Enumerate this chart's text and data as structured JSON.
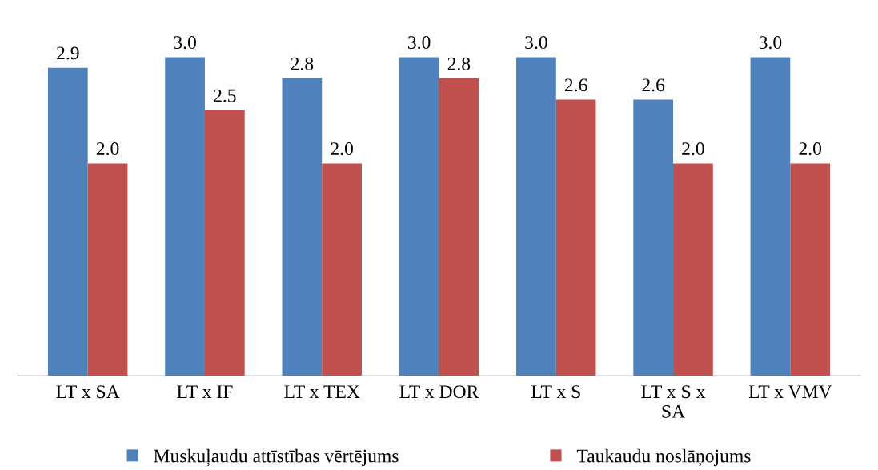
{
  "chart_data": {
    "type": "bar",
    "categories": [
      "LT x SA",
      "LT x IF",
      "LT x TEX",
      "LT x DOR",
      "LT x S",
      "LT x S x\nSA",
      "LT x VMV"
    ],
    "series": [
      {
        "name": "Muskuļaudu attīstības vērtējums",
        "color": "#4f81bd",
        "values": [
          2.9,
          3.0,
          2.8,
          3.0,
          3.0,
          2.6,
          3.0
        ],
        "value_labels": [
          "2.9",
          "3.0",
          "2.8",
          "3.0",
          "3.0",
          "2.6",
          "3.0"
        ]
      },
      {
        "name": "Taukaudu noslāņojums",
        "color": "#c0504d",
        "values": [
          2.0,
          2.5,
          2.0,
          2.8,
          2.6,
          2.0,
          2.0
        ],
        "value_labels": [
          "2.0",
          "2.5",
          "2.0",
          "2.8",
          "2.6",
          "2.0",
          "2.0"
        ]
      }
    ],
    "legend": "bottom",
    "grid": false
  }
}
